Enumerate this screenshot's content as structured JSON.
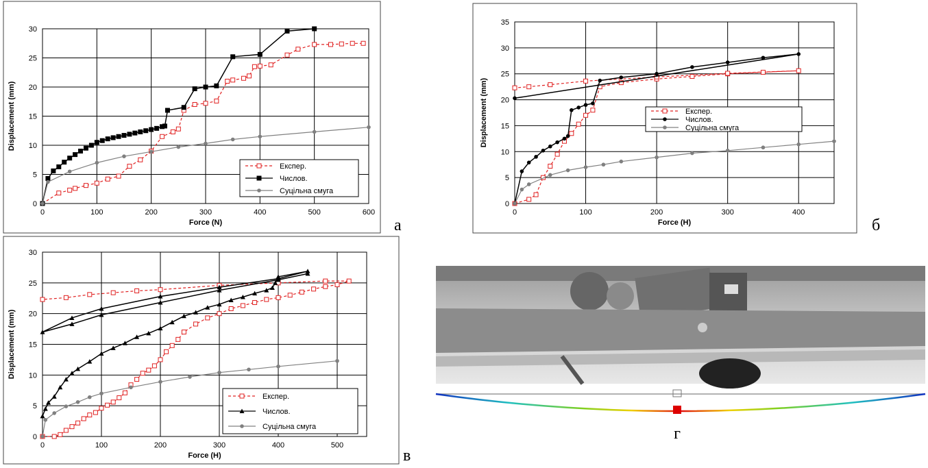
{
  "chart_data": [
    {
      "type": "line",
      "label": "а",
      "x_label": "Force (N)",
      "y_label": "Displacement (mm)",
      "xlim": [
        0,
        600
      ],
      "xticks": [
        0,
        100,
        200,
        300,
        400,
        500,
        600
      ],
      "ylim": [
        0,
        30
      ],
      "yticks": [
        0,
        5,
        10,
        15,
        20,
        25,
        30
      ],
      "grid": true,
      "series": [
        {
          "name": "Експер.",
          "color": "#e02020",
          "marker": "open-square",
          "dash": true,
          "x": [
            0,
            30,
            50,
            60,
            80,
            100,
            120,
            140,
            160,
            180,
            200,
            220,
            240,
            250,
            260,
            280,
            300,
            320,
            340,
            350,
            370,
            380,
            390,
            400,
            420,
            450,
            470,
            500,
            530,
            550,
            570,
            590
          ],
          "values": [
            0,
            1.8,
            2.3,
            2.6,
            3.1,
            3.5,
            4.2,
            4.7,
            6.4,
            7.5,
            9,
            11.5,
            12.3,
            12.8,
            16,
            17,
            17.2,
            17.6,
            21,
            21.2,
            21.5,
            21.9,
            23.5,
            23.6,
            23.8,
            25.5,
            26.5,
            27.3,
            27.3,
            27.4,
            27.5,
            27.5
          ]
        },
        {
          "name": "Числов.",
          "color": "#000000",
          "marker": "square",
          "dash": false,
          "x": [
            0,
            10,
            20,
            30,
            40,
            50,
            60,
            70,
            80,
            90,
            100,
            110,
            120,
            130,
            140,
            150,
            160,
            170,
            180,
            190,
            200,
            210,
            220,
            225,
            230,
            260,
            280,
            300,
            320,
            350,
            400,
            450,
            500
          ],
          "values": [
            0,
            4.3,
            5.6,
            6.3,
            7.1,
            7.8,
            8.4,
            9,
            9.5,
            10,
            10.5,
            10.8,
            11.1,
            11.3,
            11.5,
            11.7,
            11.9,
            12.1,
            12.3,
            12.5,
            12.7,
            12.9,
            13.2,
            13.3,
            16,
            16.5,
            19.7,
            20,
            20.2,
            25.2,
            25.6,
            29.6,
            30
          ]
        },
        {
          "name": "Суцільна смуга",
          "color": "#808080",
          "marker": "circle",
          "dash": false,
          "x": [
            0,
            10,
            50,
            100,
            150,
            200,
            250,
            300,
            350,
            400,
            500,
            600
          ],
          "values": [
            0,
            3.7,
            5.5,
            7,
            8.1,
            8.9,
            9.7,
            10.3,
            11,
            11.5,
            12.3,
            13.1
          ]
        }
      ]
    },
    {
      "type": "line",
      "label": "б",
      "x_label": "Force (H)",
      "y_label": "Displacement (mm)",
      "xlim": [
        0,
        450
      ],
      "xticks": [
        0,
        100,
        200,
        300,
        400
      ],
      "ylim": [
        0,
        35
      ],
      "yticks": [
        0,
        5,
        10,
        15,
        20,
        25,
        30,
        35
      ],
      "grid": true,
      "series": [
        {
          "name": "Експер.",
          "color": "#e02020",
          "marker": "open-square",
          "dash": true,
          "x": [
            0,
            20,
            30,
            40,
            50,
            60,
            70,
            80,
            90,
            100,
            110,
            120,
            150,
            200,
            250,
            300,
            350,
            400,
            300,
            200,
            100,
            50,
            20,
            0
          ],
          "values": [
            0,
            0.8,
            1.7,
            5,
            7.2,
            9.5,
            12,
            13.5,
            15.3,
            17,
            18,
            22.5,
            23.3,
            24,
            24.5,
            25,
            25.3,
            25.6,
            25.1,
            24.4,
            23.6,
            22.9,
            22.5,
            22.3
          ]
        },
        {
          "name": "Числов.",
          "color": "#000000",
          "marker": "circle",
          "dash": false,
          "x": [
            0,
            10,
            20,
            30,
            40,
            50,
            60,
            70,
            75,
            80,
            90,
            100,
            110,
            120,
            150,
            200,
            250,
            300,
            350,
            400,
            0
          ],
          "values": [
            0,
            6.2,
            7.9,
            9,
            10.2,
            11,
            11.8,
            12.5,
            13,
            18,
            18.5,
            19,
            19.3,
            23.7,
            24.3,
            25,
            26.3,
            27.2,
            28.1,
            28.8,
            20.3
          ]
        },
        {
          "name": "Суцільна смуга",
          "color": "#808080",
          "marker": "circle",
          "dash": false,
          "x": [
            0,
            10,
            20,
            50,
            75,
            100,
            125,
            150,
            200,
            250,
            300,
            350,
            400,
            450
          ],
          "values": [
            0,
            2.7,
            3.7,
            5.5,
            6.4,
            7,
            7.5,
            8.1,
            8.9,
            9.7,
            10.2,
            10.8,
            11.4,
            12
          ]
        }
      ]
    },
    {
      "type": "line",
      "label": "в",
      "x_label": "Force (H)",
      "y_label": "Displacement (mm)",
      "xlim": [
        0,
        550
      ],
      "xticks": [
        0,
        100,
        200,
        300,
        400,
        500
      ],
      "ylim": [
        0,
        30
      ],
      "yticks": [
        0,
        5,
        10,
        15,
        20,
        25,
        30
      ],
      "grid": true,
      "series": [
        {
          "name": "Експер.",
          "color": "#e02020",
          "marker": "open-square",
          "dash": true,
          "x": [
            0,
            20,
            30,
            40,
            50,
            60,
            70,
            80,
            90,
            100,
            110,
            120,
            130,
            140,
            150,
            160,
            170,
            180,
            190,
            200,
            210,
            220,
            230,
            240,
            260,
            280,
            300,
            320,
            340,
            360,
            380,
            400,
            420,
            440,
            460,
            480,
            500,
            520,
            480,
            400,
            300,
            200,
            160,
            120,
            80,
            40,
            0
          ],
          "values": [
            0,
            0,
            0.3,
            1,
            1.6,
            2.2,
            2.9,
            3.5,
            3.9,
            4.6,
            5.1,
            5.6,
            6.3,
            7.1,
            8.4,
            9.3,
            10.3,
            10.8,
            11.5,
            12.5,
            13.8,
            14.8,
            15.8,
            17,
            18.3,
            19.3,
            20,
            20.8,
            21.3,
            21.8,
            22.3,
            22.6,
            23,
            23.5,
            24,
            24.4,
            24.7,
            25.3,
            25.3,
            25,
            24.6,
            23.9,
            23.7,
            23.4,
            23.1,
            22.6,
            22.3
          ]
        },
        {
          "name": "Числов.",
          "color": "#000000",
          "marker": "triangle",
          "dash": false,
          "x": [
            0,
            5,
            10,
            20,
            30,
            40,
            50,
            60,
            80,
            100,
            120,
            140,
            160,
            180,
            200,
            220,
            240,
            260,
            280,
            300,
            320,
            340,
            360,
            380,
            390,
            395,
            400,
            450,
            400,
            300,
            200,
            100,
            50,
            0,
            50,
            100,
            200,
            300,
            400,
            450
          ],
          "values": [
            3.3,
            4.5,
            5.5,
            6.5,
            8,
            9.3,
            10.3,
            11,
            12.2,
            13.5,
            14.4,
            15.2,
            16.2,
            16.8,
            17.6,
            18.6,
            19.6,
            20.2,
            21,
            21.5,
            22.2,
            22.7,
            23.3,
            23.8,
            24.2,
            25,
            26,
            26.9,
            25.7,
            24.3,
            22.8,
            20.8,
            19.3,
            17,
            18.3,
            19.8,
            21.8,
            23.8,
            25.5,
            26.5
          ]
        },
        {
          "name": "Суцільна смуга",
          "color": "#808080",
          "marker": "circle",
          "dash": false,
          "x": [
            0,
            5,
            20,
            40,
            60,
            80,
            100,
            150,
            200,
            250,
            300,
            350,
            400,
            500
          ],
          "values": [
            0,
            2.7,
            3.8,
            4.9,
            5.6,
            6.4,
            7,
            8,
            8.9,
            9.7,
            10.4,
            10.9,
            11.4,
            12.3
          ]
        }
      ]
    }
  ],
  "photo": {
    "label": "г"
  }
}
